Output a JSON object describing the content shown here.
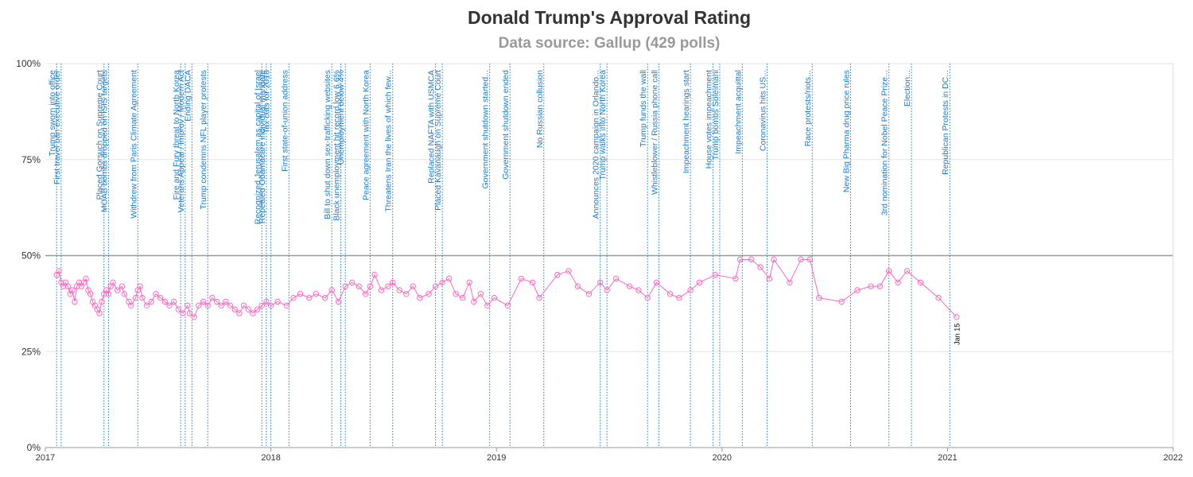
{
  "chart_data": {
    "type": "line",
    "title": "Donald Trump's Approval Rating",
    "subtitle": "Data source: Gallup (429 polls)",
    "xlim": [
      2017,
      2022
    ],
    "xticks": [
      2017,
      2018,
      2019,
      2020,
      2021,
      2022
    ],
    "ylim": [
      0,
      100
    ],
    "yticks": [
      {
        "value": 0,
        "label": "0%"
      },
      {
        "value": 25,
        "label": "25%"
      },
      {
        "value": 50,
        "label": "50%"
      },
      {
        "value": 75,
        "label": "75%"
      },
      {
        "value": 100,
        "label": "100%"
      }
    ],
    "grid": true,
    "reference_line": 50,
    "series": [
      {
        "color": "#ff69c0",
        "x": [
          2017.05,
          2017.06,
          2017.07,
          2017.08,
          2017.09,
          2017.1,
          2017.11,
          2017.12,
          2017.13,
          2017.14,
          2017.15,
          2017.16,
          2017.17,
          2017.18,
          2017.19,
          2017.2,
          2017.21,
          2017.22,
          2017.23,
          2017.24,
          2017.25,
          2017.26,
          2017.27,
          2017.28,
          2017.29,
          2017.3,
          2017.32,
          2017.34,
          2017.35,
          2017.37,
          2017.38,
          2017.4,
          2017.41,
          2017.42,
          2017.43,
          2017.45,
          2017.47,
          2017.49,
          2017.51,
          2017.53,
          2017.55,
          2017.57,
          2017.59,
          2017.61,
          2017.63,
          2017.64,
          2017.66,
          2017.68,
          2017.7,
          2017.72,
          2017.74,
          2017.76,
          2017.78,
          2017.8,
          2017.82,
          2017.84,
          2017.86,
          2017.88,
          2017.9,
          2017.92,
          2017.94,
          2017.96,
          2017.98,
          2018.0,
          2018.03,
          2018.07,
          2018.1,
          2018.13,
          2018.17,
          2018.2,
          2018.24,
          2018.27,
          2018.3,
          2018.33,
          2018.36,
          2018.39,
          2018.42,
          2018.44,
          2018.46,
          2018.49,
          2018.52,
          2018.54,
          2018.57,
          2018.6,
          2018.63,
          2018.66,
          2018.7,
          2018.73,
          2018.76,
          2018.79,
          2018.82,
          2018.85,
          2018.88,
          2018.9,
          2018.93,
          2018.96,
          2018.99,
          2019.05,
          2019.11,
          2019.16,
          2019.19,
          2019.27,
          2019.32,
          2019.36,
          2019.41,
          2019.46,
          2019.49,
          2019.53,
          2019.59,
          2019.63,
          2019.67,
          2019.71,
          2019.77,
          2019.81,
          2019.86,
          2019.9,
          2019.97,
          2020.06,
          2020.08,
          2020.13,
          2020.17,
          2020.21,
          2020.23,
          2020.3,
          2020.35,
          2020.39,
          2020.43,
          2020.53,
          2020.6,
          2020.66,
          2020.7,
          2020.74,
          2020.78,
          2020.82,
          2020.88,
          2020.96,
          2021.04
        ],
        "values": [
          45,
          46,
          43,
          42,
          43,
          42,
          40,
          41,
          38,
          42,
          43,
          42,
          43,
          44,
          41,
          40,
          38,
          37,
          36,
          35,
          38,
          40,
          41,
          40,
          42,
          43,
          41,
          42,
          40,
          38,
          37,
          39,
          41,
          42,
          39,
          37,
          38,
          40,
          39,
          38,
          37,
          38,
          36,
          35,
          37,
          35,
          34,
          37,
          38,
          37,
          39,
          38,
          37,
          38,
          37,
          36,
          35,
          37,
          36,
          35,
          36,
          37,
          38,
          37,
          38,
          37,
          39,
          40,
          39,
          40,
          39,
          41,
          38,
          42,
          43,
          42,
          40,
          42,
          45,
          41,
          42,
          43,
          41,
          40,
          42,
          39,
          40,
          42,
          43,
          44,
          40,
          39,
          43,
          38,
          40,
          37,
          39,
          37,
          44,
          43,
          39,
          45,
          46,
          42,
          40,
          43,
          41,
          44,
          42,
          41,
          39,
          43,
          40,
          39,
          41,
          43,
          45,
          44,
          49,
          49,
          47,
          44,
          49,
          43,
          49,
          49,
          39,
          38,
          41,
          42,
          42,
          46,
          43,
          46,
          43,
          39,
          34
        ]
      }
    ],
    "point_label": "Jan 15",
    "annotations": [
      {
        "x": 2017.05,
        "text": "Trump sworn into office"
      },
      {
        "x": 2017.07,
        "text": "First travel ban executive order"
      },
      {
        "x": 2017.26,
        "text": "Placed Gorsuch on Supreme Court"
      },
      {
        "x": 2017.28,
        "text": "MOAB bombs dropped on ISIS targets"
      },
      {
        "x": 2017.41,
        "text": "Withdrew from Paris Climate Agreement"
      },
      {
        "x": 2017.6,
        "text": "Fire and Fury threat to North Korea"
      },
      {
        "x": 2017.62,
        "text": "Veterans Appeal / Improv / Modern Act"
      },
      {
        "x": 2017.65,
        "text": "Ending DACA"
      },
      {
        "x": 2017.72,
        "text": "Trump condemns NFL player protests"
      },
      {
        "x": 2017.96,
        "text": "Recognized Jerusalem as capital of Israel"
      },
      {
        "x": 2017.98,
        "text": "Repealed Obamacare individual mandate"
      },
      {
        "x": 2018.0,
        "text": "Tax cuts for 2018"
      },
      {
        "x": 2018.08,
        "text": "First state-of-union address"
      },
      {
        "x": 2018.27,
        "text": "Bill to shut down sex-trafficking websites"
      },
      {
        "x": 2018.31,
        "text": "Black unemployment hit record low 6.6%"
      },
      {
        "x": 2018.33,
        "text": "Unemployment below 4%"
      },
      {
        "x": 2018.44,
        "text": "Peace agreement with North Korea"
      },
      {
        "x": 2018.54,
        "text": "Threatens Iran the lives of which few..."
      },
      {
        "x": 2018.73,
        "text": "Replaced NAFTA with USMCA"
      },
      {
        "x": 2018.76,
        "text": "Placed Kavanaugh on Supreme Court"
      },
      {
        "x": 2018.97,
        "text": "Government shutdown started..."
      },
      {
        "x": 2019.06,
        "text": "Government shutdown ended"
      },
      {
        "x": 2019.21,
        "text": "No Russian collusion"
      },
      {
        "x": 2019.46,
        "text": "Announces 2020 campaign in Orlando..."
      },
      {
        "x": 2019.49,
        "text": "Trump walks into North Korea"
      },
      {
        "x": 2019.67,
        "text": "Trump funds the wall"
      },
      {
        "x": 2019.72,
        "text": "Whistleblower / Russia phone call"
      },
      {
        "x": 2019.86,
        "text": "Impeachment hearings start"
      },
      {
        "x": 2019.96,
        "text": "House votes impeachment"
      },
      {
        "x": 2019.99,
        "text": "Trump bombs Soleimani"
      },
      {
        "x": 2020.09,
        "text": "Impeachment acquittal"
      },
      {
        "x": 2020.2,
        "text": "Coronavirus hits US..."
      },
      {
        "x": 2020.4,
        "text": "Race protests/riots..."
      },
      {
        "x": 2020.57,
        "text": "New Big Pharma drug price rules"
      },
      {
        "x": 2020.74,
        "text": "3rd nomination for Nobel Peace Prize..."
      },
      {
        "x": 2020.84,
        "text": "Election..."
      },
      {
        "x": 2021.01,
        "text": "Republican Protests in DC..."
      }
    ]
  }
}
